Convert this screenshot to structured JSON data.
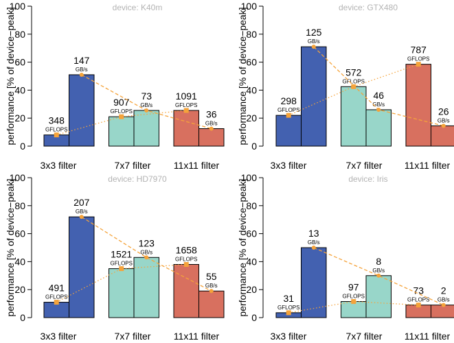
{
  "chart_data": [
    {
      "type": "bar",
      "title": "device: K40m",
      "ylabel": "performance [% of device−peak]",
      "ylim": [
        0,
        100
      ],
      "yticks": [
        "0",
        "20",
        "40",
        "60",
        "80",
        "100"
      ],
      "categories": [
        "3x3 filter",
        "7x7 filter",
        "11x11 filter"
      ],
      "series": [
        {
          "metric": "compute",
          "values": [
            8,
            21,
            25.5
          ],
          "labels": [
            "348",
            "907",
            "1091"
          ],
          "unit": "GFLOPS"
        },
        {
          "metric": "bandwidth",
          "values": [
            51,
            25.5,
            12.5
          ],
          "labels": [
            "147",
            "73",
            "36"
          ],
          "unit": "GB/s"
        }
      ]
    },
    {
      "type": "bar",
      "title": "device: GTX480",
      "ylabel": "performance [% of device−peak]",
      "ylim": [
        0,
        100
      ],
      "yticks": [
        "0",
        "20",
        "40",
        "60",
        "80",
        "100"
      ],
      "categories": [
        "3x3 filter",
        "7x7 filter",
        "11x11 filter"
      ],
      "series": [
        {
          "metric": "compute",
          "values": [
            22,
            42.5,
            58.5
          ],
          "labels": [
            "298",
            "572",
            "787"
          ],
          "unit": "GFLOPS"
        },
        {
          "metric": "bandwidth",
          "values": [
            71,
            26,
            14.5
          ],
          "labels": [
            "125",
            "46",
            "26"
          ],
          "unit": "GB/s"
        }
      ]
    },
    {
      "type": "bar",
      "title": "device: HD7970",
      "ylabel": "performance [% of device−peak]",
      "ylim": [
        0,
        100
      ],
      "yticks": [
        "0",
        "20",
        "40",
        "60",
        "80",
        "100"
      ],
      "categories": [
        "3x3 filter",
        "7x7 filter",
        "11x11 filter"
      ],
      "series": [
        {
          "metric": "compute",
          "values": [
            11,
            35,
            38
          ],
          "labels": [
            "491",
            "1521",
            "1658"
          ],
          "unit": "GFLOPS"
        },
        {
          "metric": "bandwidth",
          "values": [
            72,
            43,
            19
          ],
          "labels": [
            "207",
            "123",
            "55"
          ],
          "unit": "GB/s"
        }
      ]
    },
    {
      "type": "bar",
      "title": "device: Iris",
      "ylabel": "performance [% of device−peak]",
      "ylim": [
        0,
        100
      ],
      "yticks": [
        "0",
        "20",
        "40",
        "60",
        "80",
        "100"
      ],
      "categories": [
        "3x3 filter",
        "7x7 filter",
        "11x11 filter"
      ],
      "series": [
        {
          "metric": "compute",
          "values": [
            3.5,
            11.5,
            9
          ],
          "labels": [
            "31",
            "97",
            "73"
          ],
          "unit": "GFLOPS"
        },
        {
          "metric": "bandwidth",
          "values": [
            50,
            30,
            9
          ],
          "labels": [
            "13",
            "8",
            "2"
          ],
          "unit": "GB/s"
        }
      ]
    }
  ],
  "colors": {
    "cat_colors": [
      "#4361b0",
      "#98d6c9",
      "#d8705f"
    ],
    "marker": "#f5a33a",
    "title": "#b3b3b3"
  }
}
